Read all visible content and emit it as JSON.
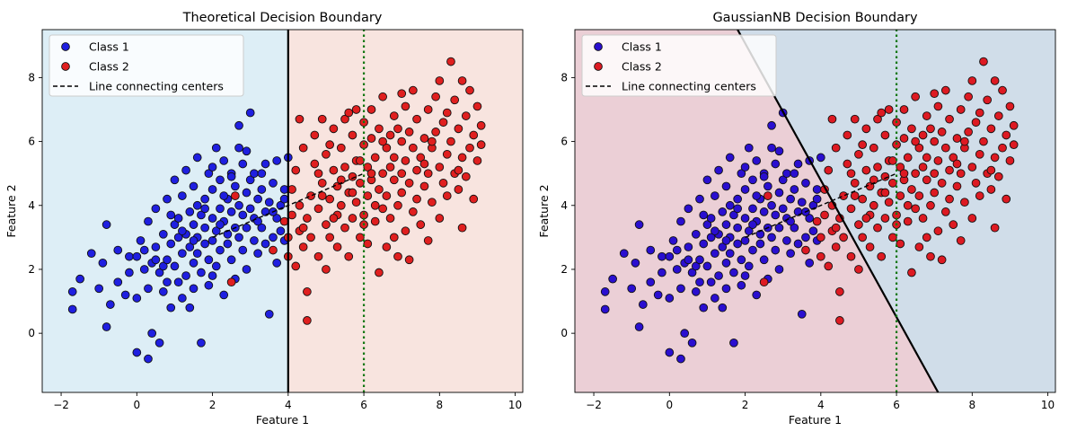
{
  "figure": {
    "background": "#ffffff"
  },
  "chart_data": [
    {
      "type": "scatter",
      "title": "Theoretical Decision Boundary",
      "xlabel": "Feature 1",
      "ylabel": "Feature 2",
      "xlim": [
        -2.5,
        10.2
      ],
      "ylim": [
        -1.85,
        9.5
      ],
      "xticks": [
        -2,
        0,
        2,
        4,
        6,
        8,
        10
      ],
      "yticks": [
        0,
        2,
        4,
        6,
        8
      ],
      "grid": false,
      "legend_position": "upper-left",
      "legend": [
        {
          "label": "Class 1",
          "marker": "dot",
          "color": "#1f1fe0"
        },
        {
          "label": "Class 2",
          "marker": "dot",
          "color": "#e01f1f"
        },
        {
          "label": "Line connecting centers",
          "marker": "dashed-line",
          "color": "#000000"
        }
      ],
      "regions": [
        {
          "name": "class-1-region",
          "color": "#ddeef6",
          "boundary": "x < 4"
        },
        {
          "name": "class-2-region",
          "color": "#f8e4df",
          "boundary": "x >= 4"
        }
      ],
      "lines": [
        {
          "name": "decision-boundary",
          "style": "solid",
          "color": "#000000",
          "points": [
            [
              4,
              -1.85
            ],
            [
              4,
              9.5
            ]
          ]
        },
        {
          "name": "vertical-marker",
          "style": "dotted",
          "color": "#117711",
          "points": [
            [
              6,
              -1.85
            ],
            [
              6,
              9.5
            ]
          ]
        },
        {
          "name": "centers-line",
          "style": "dashed",
          "color": "#000000",
          "points": [
            [
              2,
              3
            ],
            [
              6,
              5
            ]
          ]
        }
      ]
    },
    {
      "type": "scatter",
      "title": "GaussianNB Decision Boundary",
      "xlabel": "Feature 1",
      "ylabel": "Feature 2",
      "xlim": [
        -2.5,
        10.2
      ],
      "ylim": [
        -1.85,
        9.5
      ],
      "xticks": [
        -2,
        0,
        2,
        4,
        6,
        8,
        10
      ],
      "yticks": [
        0,
        2,
        4,
        6,
        8
      ],
      "grid": false,
      "legend_position": "upper-left",
      "legend": [
        {
          "label": "Class 1",
          "marker": "dot",
          "color": "#1f1fe0"
        },
        {
          "label": "Class 2",
          "marker": "dot",
          "color": "#e01f1f"
        },
        {
          "label": "Line connecting centers",
          "marker": "dashed-line",
          "color": "#000000"
        }
      ],
      "regions": [
        {
          "name": "class-1-region",
          "color": "#ebcfd6",
          "boundary": "left of boundary line"
        },
        {
          "name": "class-2-region",
          "color": "#d0dde9",
          "boundary": "right of boundary line"
        }
      ],
      "point_colors": {
        "class1": "#2a0fd0",
        "class2": "#dd1a22"
      },
      "lines": [
        {
          "name": "decision-boundary",
          "style": "solid",
          "color": "#000000",
          "points": [
            [
              1.8,
              9.5
            ],
            [
              7.1,
              -1.85
            ]
          ]
        },
        {
          "name": "vertical-marker",
          "style": "dotted",
          "color": "#117711",
          "points": [
            [
              6,
              -1.85
            ],
            [
              6,
              9.5
            ]
          ]
        },
        {
          "name": "centers-line",
          "style": "dashed",
          "color": "#000000",
          "points": [
            [
              2,
              3
            ],
            [
              6,
              5
            ]
          ]
        }
      ]
    }
  ],
  "samples": {
    "class1": [
      [
        -1.7,
        0.75
      ],
      [
        -1.7,
        1.3
      ],
      [
        -1.5,
        1.7
      ],
      [
        -1.2,
        2.5
      ],
      [
        -1.0,
        1.4
      ],
      [
        -0.9,
        2.2
      ],
      [
        -0.8,
        3.4
      ],
      [
        -0.8,
        0.2
      ],
      [
        -0.7,
        0.9
      ],
      [
        -0.5,
        1.6
      ],
      [
        -0.5,
        2.6
      ],
      [
        -0.3,
        1.2
      ],
      [
        -0.2,
        2.4
      ],
      [
        -0.2,
        1.9
      ],
      [
        0.0,
        1.1
      ],
      [
        0.0,
        2.4
      ],
      [
        0.0,
        -0.6
      ],
      [
        0.1,
        2.9
      ],
      [
        0.2,
        2.0
      ],
      [
        0.2,
        2.6
      ],
      [
        0.3,
        -0.8
      ],
      [
        0.3,
        1.4
      ],
      [
        0.3,
        3.5
      ],
      [
        0.4,
        2.2
      ],
      [
        0.4,
        0.0
      ],
      [
        0.5,
        2.7
      ],
      [
        0.5,
        3.9
      ],
      [
        0.6,
        1.9
      ],
      [
        0.6,
        -0.3
      ],
      [
        0.7,
        2.1
      ],
      [
        0.7,
        1.3
      ],
      [
        0.7,
        3.1
      ],
      [
        0.8,
        2.3
      ],
      [
        0.8,
        4.2
      ],
      [
        0.8,
        1.6
      ],
      [
        0.9,
        2.8
      ],
      [
        0.9,
        0.8
      ],
      [
        1.0,
        3.4
      ],
      [
        1.0,
        2.1
      ],
      [
        1.0,
        4.8
      ],
      [
        1.1,
        1.6
      ],
      [
        1.1,
        3.0
      ],
      [
        1.1,
        3.6
      ],
      [
        1.2,
        2.5
      ],
      [
        1.2,
        4.3
      ],
      [
        1.2,
        1.1
      ],
      [
        1.3,
        3.1
      ],
      [
        1.3,
        1.8
      ],
      [
        1.3,
        5.1
      ],
      [
        1.4,
        2.7
      ],
      [
        1.4,
        3.8
      ],
      [
        1.4,
        0.8
      ],
      [
        1.5,
        2.2
      ],
      [
        1.5,
        3.4
      ],
      [
        1.5,
        4.6
      ],
      [
        1.5,
        1.4
      ],
      [
        1.6,
        3.0
      ],
      [
        1.6,
        2.5
      ],
      [
        1.6,
        5.5
      ],
      [
        1.7,
        3.7
      ],
      [
        1.7,
        1.9
      ],
      [
        1.7,
        -0.3
      ],
      [
        1.8,
        2.8
      ],
      [
        1.8,
        4.2
      ],
      [
        1.8,
        3.3
      ],
      [
        1.9,
        2.3
      ],
      [
        1.9,
        1.5
      ],
      [
        1.9,
        5.0
      ],
      [
        2.0,
        3.6
      ],
      [
        2.0,
        2.9
      ],
      [
        2.0,
        4.5
      ],
      [
        2.0,
        1.8
      ],
      [
        2.1,
        3.2
      ],
      [
        2.1,
        5.8
      ],
      [
        2.1,
        2.1
      ],
      [
        2.2,
        3.9
      ],
      [
        2.2,
        2.6
      ],
      [
        2.2,
        4.8
      ],
      [
        2.3,
        1.2
      ],
      [
        2.3,
        3.5
      ],
      [
        2.3,
        5.4
      ],
      [
        2.4,
        2.8
      ],
      [
        2.4,
        4.2
      ],
      [
        2.4,
        3.1
      ],
      [
        2.5,
        3.8
      ],
      [
        2.5,
        2.3
      ],
      [
        2.5,
        5.0
      ],
      [
        2.6,
        3.3
      ],
      [
        2.6,
        4.6
      ],
      [
        2.6,
        1.7
      ],
      [
        2.7,
        3.0
      ],
      [
        2.7,
        4.0
      ],
      [
        2.7,
        6.5
      ],
      [
        2.8,
        3.7
      ],
      [
        2.8,
        2.6
      ],
      [
        2.8,
        5.3
      ],
      [
        2.9,
        4.4
      ],
      [
        2.9,
        3.3
      ],
      [
        2.9,
        2.0
      ],
      [
        3.0,
        6.9
      ],
      [
        3.0,
        3.9
      ],
      [
        3.0,
        4.8
      ],
      [
        3.1,
        2.9
      ],
      [
        3.1,
        3.6
      ],
      [
        3.1,
        5.0
      ],
      [
        3.2,
        4.2
      ],
      [
        3.2,
        2.5
      ],
      [
        3.3,
        3.3
      ],
      [
        3.3,
        4.5
      ],
      [
        3.4,
        3.8
      ],
      [
        3.4,
        2.8
      ],
      [
        3.4,
        5.3
      ],
      [
        3.5,
        4.1
      ],
      [
        3.5,
        0.6
      ],
      [
        3.6,
        3.0
      ],
      [
        3.6,
        4.7
      ],
      [
        3.7,
        3.6
      ],
      [
        3.7,
        5.4
      ],
      [
        3.7,
        2.2
      ],
      [
        3.8,
        4.0
      ],
      [
        3.8,
        3.2
      ],
      [
        3.9,
        4.5
      ],
      [
        3.9,
        2.9
      ],
      [
        4.0,
        5.5
      ],
      [
        3.3,
        5.0
      ],
      [
        2.3,
        4.3
      ],
      [
        1.6,
        4.0
      ],
      [
        2.0,
        5.2
      ],
      [
        2.9,
        5.7
      ],
      [
        1.2,
        3.2
      ],
      [
        0.9,
        3.7
      ],
      [
        1.8,
        3.9
      ],
      [
        2.5,
        4.9
      ],
      [
        3.6,
        3.8
      ],
      [
        3.9,
        4.2
      ],
      [
        2.2,
        3.4
      ],
      [
        1.5,
        2.9
      ],
      [
        0.5,
        2.3
      ],
      [
        2.7,
        5.8
      ],
      [
        3.2,
        3.5
      ]
    ],
    "class2": [
      [
        2.5,
        1.6
      ],
      [
        2.6,
        4.3
      ],
      [
        3.6,
        2.6
      ],
      [
        3.9,
        3.5
      ],
      [
        4.0,
        2.4
      ],
      [
        4.0,
        3.0
      ],
      [
        4.1,
        3.7
      ],
      [
        4.1,
        4.5
      ],
      [
        4.2,
        2.1
      ],
      [
        4.2,
        5.1
      ],
      [
        4.3,
        3.2
      ],
      [
        4.3,
        4.0
      ],
      [
        4.4,
        2.7
      ],
      [
        4.4,
        5.8
      ],
      [
        4.5,
        1.3
      ],
      [
        4.5,
        3.6
      ],
      [
        4.5,
        0.4
      ],
      [
        4.6,
        4.3
      ],
      [
        4.6,
        3.0
      ],
      [
        4.7,
        5.3
      ],
      [
        4.7,
        6.2
      ],
      [
        4.8,
        3.9
      ],
      [
        4.8,
        2.4
      ],
      [
        4.9,
        4.7
      ],
      [
        4.9,
        6.7
      ],
      [
        5.0,
        3.4
      ],
      [
        5.0,
        5.6
      ],
      [
        5.0,
        2.0
      ],
      [
        5.1,
        4.2
      ],
      [
        5.1,
        3.0
      ],
      [
        5.2,
        5.1
      ],
      [
        5.2,
        6.4
      ],
      [
        5.3,
        3.7
      ],
      [
        5.3,
        4.6
      ],
      [
        5.3,
        2.7
      ],
      [
        5.4,
        5.8
      ],
      [
        5.4,
        4.0
      ],
      [
        5.5,
        3.3
      ],
      [
        5.5,
        5.2
      ],
      [
        5.5,
        6.7
      ],
      [
        5.6,
        4.4
      ],
      [
        5.6,
        2.4
      ],
      [
        5.7,
        4.9
      ],
      [
        5.7,
        3.6
      ],
      [
        5.7,
        6.2
      ],
      [
        5.8,
        5.4
      ],
      [
        5.8,
        4.1
      ],
      [
        5.8,
        7.0
      ],
      [
        5.9,
        3.0
      ],
      [
        5.9,
        4.7
      ],
      [
        6.0,
        5.9
      ],
      [
        6.0,
        3.7
      ],
      [
        6.0,
        6.6
      ],
      [
        6.1,
        4.3
      ],
      [
        6.1,
        5.2
      ],
      [
        6.1,
        2.8
      ],
      [
        6.2,
        6.1
      ],
      [
        6.2,
        4.8
      ],
      [
        6.2,
        7.0
      ],
      [
        6.3,
        3.5
      ],
      [
        6.3,
        5.5
      ],
      [
        6.4,
        4.5
      ],
      [
        6.4,
        6.4
      ],
      [
        6.4,
        1.9
      ],
      [
        6.5,
        5.0
      ],
      [
        6.5,
        3.9
      ],
      [
        6.5,
        7.4
      ],
      [
        6.6,
        5.8
      ],
      [
        6.6,
        4.3
      ],
      [
        6.6,
        2.7
      ],
      [
        6.7,
        6.2
      ],
      [
        6.7,
        5.2
      ],
      [
        6.7,
        3.6
      ],
      [
        6.8,
        6.8
      ],
      [
        6.8,
        4.8
      ],
      [
        6.8,
        5.5
      ],
      [
        6.9,
        4.0
      ],
      [
        6.9,
        6.4
      ],
      [
        6.9,
        2.4
      ],
      [
        7.0,
        5.0
      ],
      [
        7.0,
        6.0
      ],
      [
        7.0,
        4.4
      ],
      [
        7.1,
        7.1
      ],
      [
        7.1,
        5.4
      ],
      [
        7.1,
        3.2
      ],
      [
        7.2,
        4.7
      ],
      [
        7.2,
        6.3
      ],
      [
        7.3,
        5.8
      ],
      [
        7.3,
        3.8
      ],
      [
        7.3,
        7.6
      ],
      [
        7.4,
        5.1
      ],
      [
        7.4,
        4.2
      ],
      [
        7.4,
        6.7
      ],
      [
        7.5,
        5.5
      ],
      [
        7.5,
        3.4
      ],
      [
        7.6,
        6.1
      ],
      [
        7.6,
        4.6
      ],
      [
        7.7,
        7.0
      ],
      [
        7.7,
        5.0
      ],
      [
        7.7,
        2.9
      ],
      [
        7.8,
        5.8
      ],
      [
        7.8,
        4.1
      ],
      [
        7.9,
        7.4
      ],
      [
        7.9,
        6.3
      ],
      [
        8.0,
        5.2
      ],
      [
        8.0,
        3.6
      ],
      [
        8.0,
        7.9
      ],
      [
        8.1,
        4.7
      ],
      [
        8.1,
        6.6
      ],
      [
        8.2,
        5.6
      ],
      [
        8.2,
        4.3
      ],
      [
        8.3,
        8.5
      ],
      [
        8.3,
        6.0
      ],
      [
        8.4,
        7.3
      ],
      [
        8.4,
        5.0
      ],
      [
        8.5,
        6.4
      ],
      [
        8.5,
        4.5
      ],
      [
        8.6,
        7.9
      ],
      [
        8.6,
        5.5
      ],
      [
        8.6,
        3.3
      ],
      [
        8.7,
        6.8
      ],
      [
        8.7,
        4.9
      ],
      [
        8.8,
        7.6
      ],
      [
        8.8,
        5.8
      ],
      [
        8.9,
        6.2
      ],
      [
        8.9,
        4.2
      ],
      [
        9.0,
        7.1
      ],
      [
        9.0,
        5.4
      ],
      [
        9.1,
        6.5
      ],
      [
        9.1,
        5.9
      ],
      [
        4.3,
        6.7
      ],
      [
        4.8,
        5.0
      ],
      [
        5.6,
        6.9
      ],
      [
        6.3,
        4.0
      ],
      [
        5.1,
        5.9
      ],
      [
        5.9,
        5.4
      ],
      [
        7.2,
        2.3
      ],
      [
        6.0,
        3.4
      ],
      [
        5.4,
        4.8
      ],
      [
        6.8,
        3.0
      ],
      [
        7.6,
        5.3
      ],
      [
        8.2,
        6.9
      ],
      [
        4.9,
        4.3
      ],
      [
        5.7,
        4.4
      ],
      [
        6.5,
        6.0
      ],
      [
        7.0,
        7.5
      ],
      [
        8.5,
        5.1
      ],
      [
        4.4,
        3.3
      ],
      [
        6.2,
        5.0
      ],
      [
        7.8,
        6.0
      ],
      [
        5.2,
        3.6
      ]
    ]
  }
}
